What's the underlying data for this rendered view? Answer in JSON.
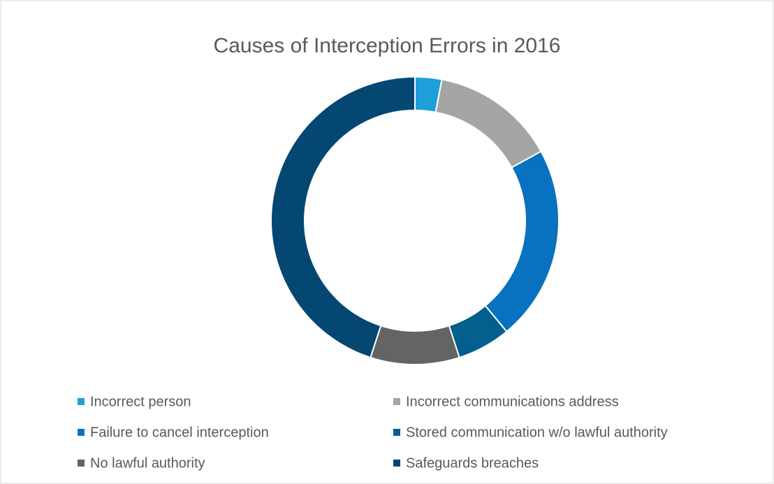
{
  "chart_data": {
    "type": "donut",
    "title": "Causes of Interception Errors in 2016",
    "categories": [
      "Incorrect person",
      "Incorrect communications address",
      "Failure to cancel interception",
      "Stored communication w/o lawful authority",
      "No lawful authority",
      "Safeguards breaches"
    ],
    "values": [
      3,
      14,
      22,
      6,
      10,
      45
    ],
    "colors": [
      "#1f9fd9",
      "#a5a5a5",
      "#0872c0",
      "#045e8e",
      "#646464",
      "#044772"
    ],
    "legend": "bottom"
  }
}
